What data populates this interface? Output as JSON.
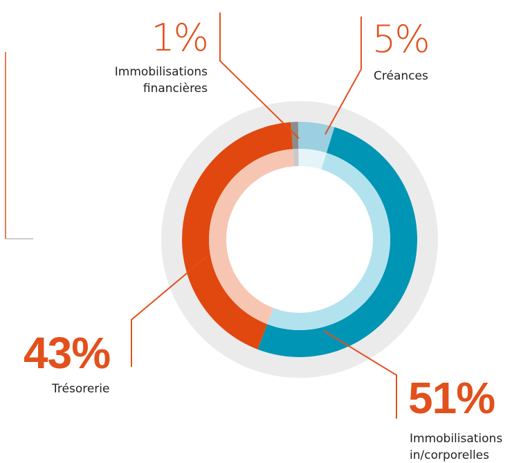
{
  "chart_data": {
    "type": "donut",
    "categories": [
      "Immobilisations financières",
      "Créances",
      "Immobilisations in/corporelles",
      "Trésorerie"
    ],
    "values": [
      1,
      5,
      51,
      43
    ],
    "value_labels": [
      "1%",
      "5%",
      "51%",
      "43%"
    ],
    "colors": [
      "#8c8c8c",
      "#9ccfe0",
      "#0095b4",
      "#e0480f"
    ],
    "inner_colors": [
      "#c9c9c9",
      "#e4f4f8",
      "#b2e2ee",
      "#f7c6b2"
    ]
  }
}
